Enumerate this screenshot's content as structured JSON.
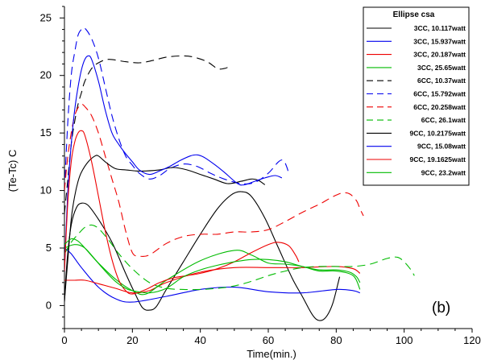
{
  "chart_data": {
    "type": "line",
    "xlabel": "Time(min.)",
    "ylabel": "(Te-Tc) C",
    "xlim": [
      0,
      120
    ],
    "ylim": [
      -2,
      26
    ],
    "x_ticks": [
      0,
      20,
      40,
      60,
      80,
      100,
      120
    ],
    "y_ticks": [
      0,
      5,
      10,
      15,
      20,
      25
    ],
    "grid": false,
    "legend_title": "Ellipse csa",
    "legend_position": "top-right",
    "panel_label": "(b)",
    "series": [
      {
        "name": "3CC, 10.117watt",
        "color": "#000000",
        "dash": "solid",
        "points": [
          [
            0,
            0.3
          ],
          [
            0.8,
            4
          ],
          [
            2,
            7
          ],
          [
            3.5,
            8.5
          ],
          [
            5,
            8.9
          ],
          [
            7,
            8.7
          ],
          [
            10,
            7.5
          ],
          [
            14,
            5.5
          ],
          [
            18,
            2.8
          ],
          [
            21,
            0.9
          ],
          [
            23,
            -0.2
          ],
          [
            25,
            -0.4
          ],
          [
            27,
            -0.1
          ],
          [
            30,
            1.4
          ],
          [
            35,
            3.8
          ],
          [
            40,
            6.2
          ],
          [
            45,
            8.4
          ],
          [
            49,
            9.6
          ],
          [
            52,
            9.9
          ],
          [
            55,
            9.5
          ],
          [
            59,
            7.6
          ],
          [
            63,
            5.0
          ],
          [
            67,
            2.4
          ],
          [
            70,
            0.8
          ],
          [
            73,
            -0.8
          ],
          [
            75,
            -1.3
          ],
          [
            77,
            -1.0
          ],
          [
            79,
            0.2
          ],
          [
            81,
            2.5
          ]
        ]
      },
      {
        "name": "3CC, 15.937watt",
        "color": "#0000ee",
        "dash": "solid",
        "points": [
          [
            0,
            5.0
          ],
          [
            2,
            4.5
          ],
          [
            5,
            3.3
          ],
          [
            10,
            1.6
          ],
          [
            15,
            0.6
          ],
          [
            20,
            0.3
          ],
          [
            30,
            0.8
          ],
          [
            40,
            1.4
          ],
          [
            50,
            1.6
          ],
          [
            60,
            1.2
          ],
          [
            70,
            1.1
          ],
          [
            80,
            1.4
          ],
          [
            85,
            1.3
          ],
          [
            87,
            1.1
          ]
        ]
      },
      {
        "name": "3CC, 20.187watt",
        "color": "#ee0000",
        "dash": "solid",
        "points": [
          [
            0,
            2.2
          ],
          [
            3,
            2.2
          ],
          [
            6,
            2.2
          ],
          [
            10,
            1.9
          ],
          [
            15,
            1.5
          ],
          [
            20,
            1.1
          ],
          [
            25,
            1.3
          ],
          [
            30,
            2.0
          ],
          [
            40,
            2.9
          ],
          [
            50,
            3.3
          ],
          [
            60,
            3.3
          ],
          [
            70,
            3.3
          ],
          [
            80,
            3.4
          ],
          [
            85,
            3.2
          ],
          [
            87,
            2.8
          ]
        ]
      },
      {
        "name": "3CC, 25.65watt",
        "color": "#00bb00",
        "dash": "solid",
        "points": [
          [
            0,
            5.0
          ],
          [
            3,
            5.3
          ],
          [
            6,
            5.0
          ],
          [
            10,
            3.7
          ],
          [
            15,
            2.3
          ],
          [
            20,
            1.3
          ],
          [
            24,
            1.0
          ],
          [
            30,
            2.2
          ],
          [
            40,
            3.9
          ],
          [
            50,
            4.8
          ],
          [
            55,
            4.4
          ],
          [
            60,
            3.7
          ],
          [
            65,
            3.6
          ],
          [
            70,
            3.4
          ],
          [
            75,
            3.0
          ],
          [
            80,
            3.0
          ],
          [
            85,
            2.6
          ],
          [
            87,
            1.4
          ]
        ]
      },
      {
        "name": "6CC, 10.37watt",
        "color": "#000000",
        "dash": "10,6",
        "points": [
          [
            0,
            8
          ],
          [
            1,
            11
          ],
          [
            2,
            14
          ],
          [
            3,
            16
          ],
          [
            4,
            17.5
          ],
          [
            5,
            18.5
          ],
          [
            6,
            19.5
          ],
          [
            8,
            20.6
          ],
          [
            10,
            21.1
          ],
          [
            13,
            21.4
          ],
          [
            18,
            21.2
          ],
          [
            22,
            21.1
          ],
          [
            26,
            21.3
          ],
          [
            30,
            21.6
          ],
          [
            35,
            21.7
          ],
          [
            38,
            21.6
          ],
          [
            42,
            21.2
          ],
          [
            45,
            20.6
          ],
          [
            47,
            20.6
          ],
          [
            48,
            20.7
          ]
        ]
      },
      {
        "name": "6CC, 15.792watt",
        "color": "#0000ee",
        "dash": "10,6",
        "points": [
          [
            0,
            10
          ],
          [
            1,
            16
          ],
          [
            2,
            20
          ],
          [
            3,
            22
          ],
          [
            4,
            23.5
          ],
          [
            5,
            24.0
          ],
          [
            6,
            24.1
          ],
          [
            8,
            23.2
          ],
          [
            10,
            21.5
          ],
          [
            12,
            19
          ],
          [
            14,
            16.5
          ],
          [
            16,
            14.5
          ],
          [
            18,
            13.0
          ],
          [
            20,
            12.2
          ],
          [
            22,
            11.5
          ],
          [
            25,
            11.0
          ],
          [
            28,
            11.3
          ],
          [
            31,
            11.9
          ],
          [
            35,
            12.3
          ],
          [
            39,
            12.1
          ],
          [
            43,
            11.5
          ],
          [
            47,
            11.0
          ],
          [
            52,
            10.6
          ],
          [
            56,
            10.7
          ],
          [
            60,
            11.5
          ],
          [
            63,
            12.5
          ],
          [
            64.5,
            12.6
          ],
          [
            65.5,
            12.0
          ],
          [
            66,
            11.5
          ]
        ]
      },
      {
        "name": "6CC, 20.258watt",
        "color": "#ee0000",
        "dash": "10,6",
        "points": [
          [
            0,
            10
          ],
          [
            1,
            13
          ],
          [
            2,
            15
          ],
          [
            3,
            16.5
          ],
          [
            4,
            17.2
          ],
          [
            5,
            17.5
          ],
          [
            6,
            17.3
          ],
          [
            8,
            16.5
          ],
          [
            10,
            15
          ],
          [
            12,
            13
          ],
          [
            14,
            11
          ],
          [
            16,
            9
          ],
          [
            18,
            6.5
          ],
          [
            20,
            4.6
          ],
          [
            22,
            4.3
          ],
          [
            25,
            4.4
          ],
          [
            30,
            5.4
          ],
          [
            35,
            6.0
          ],
          [
            40,
            6.2
          ],
          [
            45,
            6.2
          ],
          [
            50,
            6.4
          ],
          [
            55,
            6.4
          ],
          [
            60,
            6.6
          ],
          [
            65,
            7.3
          ],
          [
            70,
            8.1
          ],
          [
            75,
            8.8
          ],
          [
            78,
            9.3
          ],
          [
            80,
            9.6
          ],
          [
            82,
            9.8
          ],
          [
            84,
            9.7
          ],
          [
            86,
            9.1
          ],
          [
            87,
            8.4
          ],
          [
            88,
            7.8
          ]
        ]
      },
      {
        "name": "6CC, 26.1watt",
        "color": "#00bb00",
        "dash": "10,6",
        "points": [
          [
            0,
            4.5
          ],
          [
            2,
            5.5
          ],
          [
            4,
            6.2
          ],
          [
            6,
            6.8
          ],
          [
            8,
            7.0
          ],
          [
            10,
            6.7
          ],
          [
            13,
            5.7
          ],
          [
            16,
            4.5
          ],
          [
            20,
            3.2
          ],
          [
            25,
            2.0
          ],
          [
            30,
            1.5
          ],
          [
            35,
            1.4
          ],
          [
            40,
            1.4
          ],
          [
            45,
            1.5
          ],
          [
            50,
            1.7
          ],
          [
            55,
            2.1
          ],
          [
            60,
            2.6
          ],
          [
            65,
            3.0
          ],
          [
            70,
            3.3
          ],
          [
            75,
            3.4
          ],
          [
            80,
            3.4
          ],
          [
            85,
            3.4
          ],
          [
            90,
            3.6
          ],
          [
            95,
            4.1
          ],
          [
            98,
            4.2
          ],
          [
            100,
            3.8
          ],
          [
            102,
            3.1
          ],
          [
            103,
            2.6
          ]
        ]
      },
      {
        "name": "9CC, 10.2175watt",
        "color": "#000000",
        "dash": "solid",
        "points": [
          [
            0,
            0.4
          ],
          [
            1,
            4
          ],
          [
            2,
            7.5
          ],
          [
            3,
            9.5
          ],
          [
            4,
            10.8
          ],
          [
            5,
            11.6
          ],
          [
            7,
            12.5
          ],
          [
            9,
            13.0
          ],
          [
            10,
            13.0
          ],
          [
            12,
            12.5
          ],
          [
            15,
            11.9
          ],
          [
            18,
            11.8
          ],
          [
            21,
            11.7
          ],
          [
            24,
            11.7
          ],
          [
            28,
            11.8
          ],
          [
            32,
            12.0
          ],
          [
            36,
            11.8
          ],
          [
            40,
            11.4
          ],
          [
            44,
            11.0
          ],
          [
            48,
            10.6
          ],
          [
            52,
            10.8
          ],
          [
            55,
            11.0
          ],
          [
            57,
            10.9
          ],
          [
            59,
            10.5
          ]
        ]
      },
      {
        "name": "9CC, 15.08watt",
        "color": "#0000ee",
        "dash": "solid",
        "points": [
          [
            0,
            3
          ],
          [
            1,
            10
          ],
          [
            2,
            14
          ],
          [
            3,
            17
          ],
          [
            4,
            19
          ],
          [
            5,
            20.5
          ],
          [
            6,
            21.4
          ],
          [
            7,
            21.7
          ],
          [
            8,
            21.4
          ],
          [
            10,
            19.5
          ],
          [
            12,
            17
          ],
          [
            14,
            15
          ],
          [
            16,
            14
          ],
          [
            18,
            13.2
          ],
          [
            20,
            12.5
          ],
          [
            22,
            11.8
          ],
          [
            25,
            11.4
          ],
          [
            28,
            11.7
          ],
          [
            31,
            12.1
          ],
          [
            34,
            12.6
          ],
          [
            37,
            13.0
          ],
          [
            39,
            13.1
          ],
          [
            41,
            12.9
          ],
          [
            44,
            12.3
          ],
          [
            47,
            11.6
          ],
          [
            51,
            10.6
          ],
          [
            53,
            10.5
          ],
          [
            56,
            10.8
          ],
          [
            59,
            11.1
          ],
          [
            62,
            11.3
          ],
          [
            64,
            11.1
          ]
        ]
      },
      {
        "name": "9CC, 19.1625watt",
        "color": "#ee0000",
        "dash": "solid",
        "points": [
          [
            0,
            3
          ],
          [
            1,
            9
          ],
          [
            2,
            12.5
          ],
          [
            3,
            14.2
          ],
          [
            4,
            15.0
          ],
          [
            5,
            15.2
          ],
          [
            6,
            14.8
          ],
          [
            8,
            12.5
          ],
          [
            10,
            9.5
          ],
          [
            12,
            6.5
          ],
          [
            14,
            4.0
          ],
          [
            16,
            2.2
          ],
          [
            18,
            1.3
          ],
          [
            20,
            1.0
          ],
          [
            24,
            1.4
          ],
          [
            28,
            2.0
          ],
          [
            32,
            2.4
          ],
          [
            36,
            2.6
          ],
          [
            40,
            2.8
          ],
          [
            45,
            3.2
          ],
          [
            50,
            3.8
          ],
          [
            55,
            4.6
          ],
          [
            60,
            5.3
          ],
          [
            63,
            5.5
          ],
          [
            66,
            5.2
          ],
          [
            68,
            4.4
          ],
          [
            69,
            3.8
          ]
        ]
      },
      {
        "name": "9CC, 23.2watt",
        "color": "#00bb00",
        "dash": "solid",
        "points": [
          [
            0,
            5.3
          ],
          [
            2,
            5.8
          ],
          [
            4,
            5.6
          ],
          [
            6,
            5.0
          ],
          [
            9,
            4.0
          ],
          [
            12,
            3.0
          ],
          [
            15,
            2.1
          ],
          [
            18,
            1.5
          ],
          [
            20,
            1.3
          ],
          [
            25,
            1.1
          ],
          [
            30,
            1.5
          ],
          [
            35,
            2.5
          ],
          [
            40,
            3.1
          ],
          [
            45,
            3.5
          ],
          [
            50,
            3.8
          ],
          [
            55,
            4.0
          ],
          [
            60,
            4.0
          ],
          [
            65,
            3.8
          ],
          [
            70,
            3.4
          ],
          [
            75,
            3.1
          ],
          [
            80,
            3.1
          ],
          [
            84,
            2.9
          ],
          [
            86,
            2.5
          ],
          [
            87,
            2.0
          ]
        ]
      }
    ]
  }
}
